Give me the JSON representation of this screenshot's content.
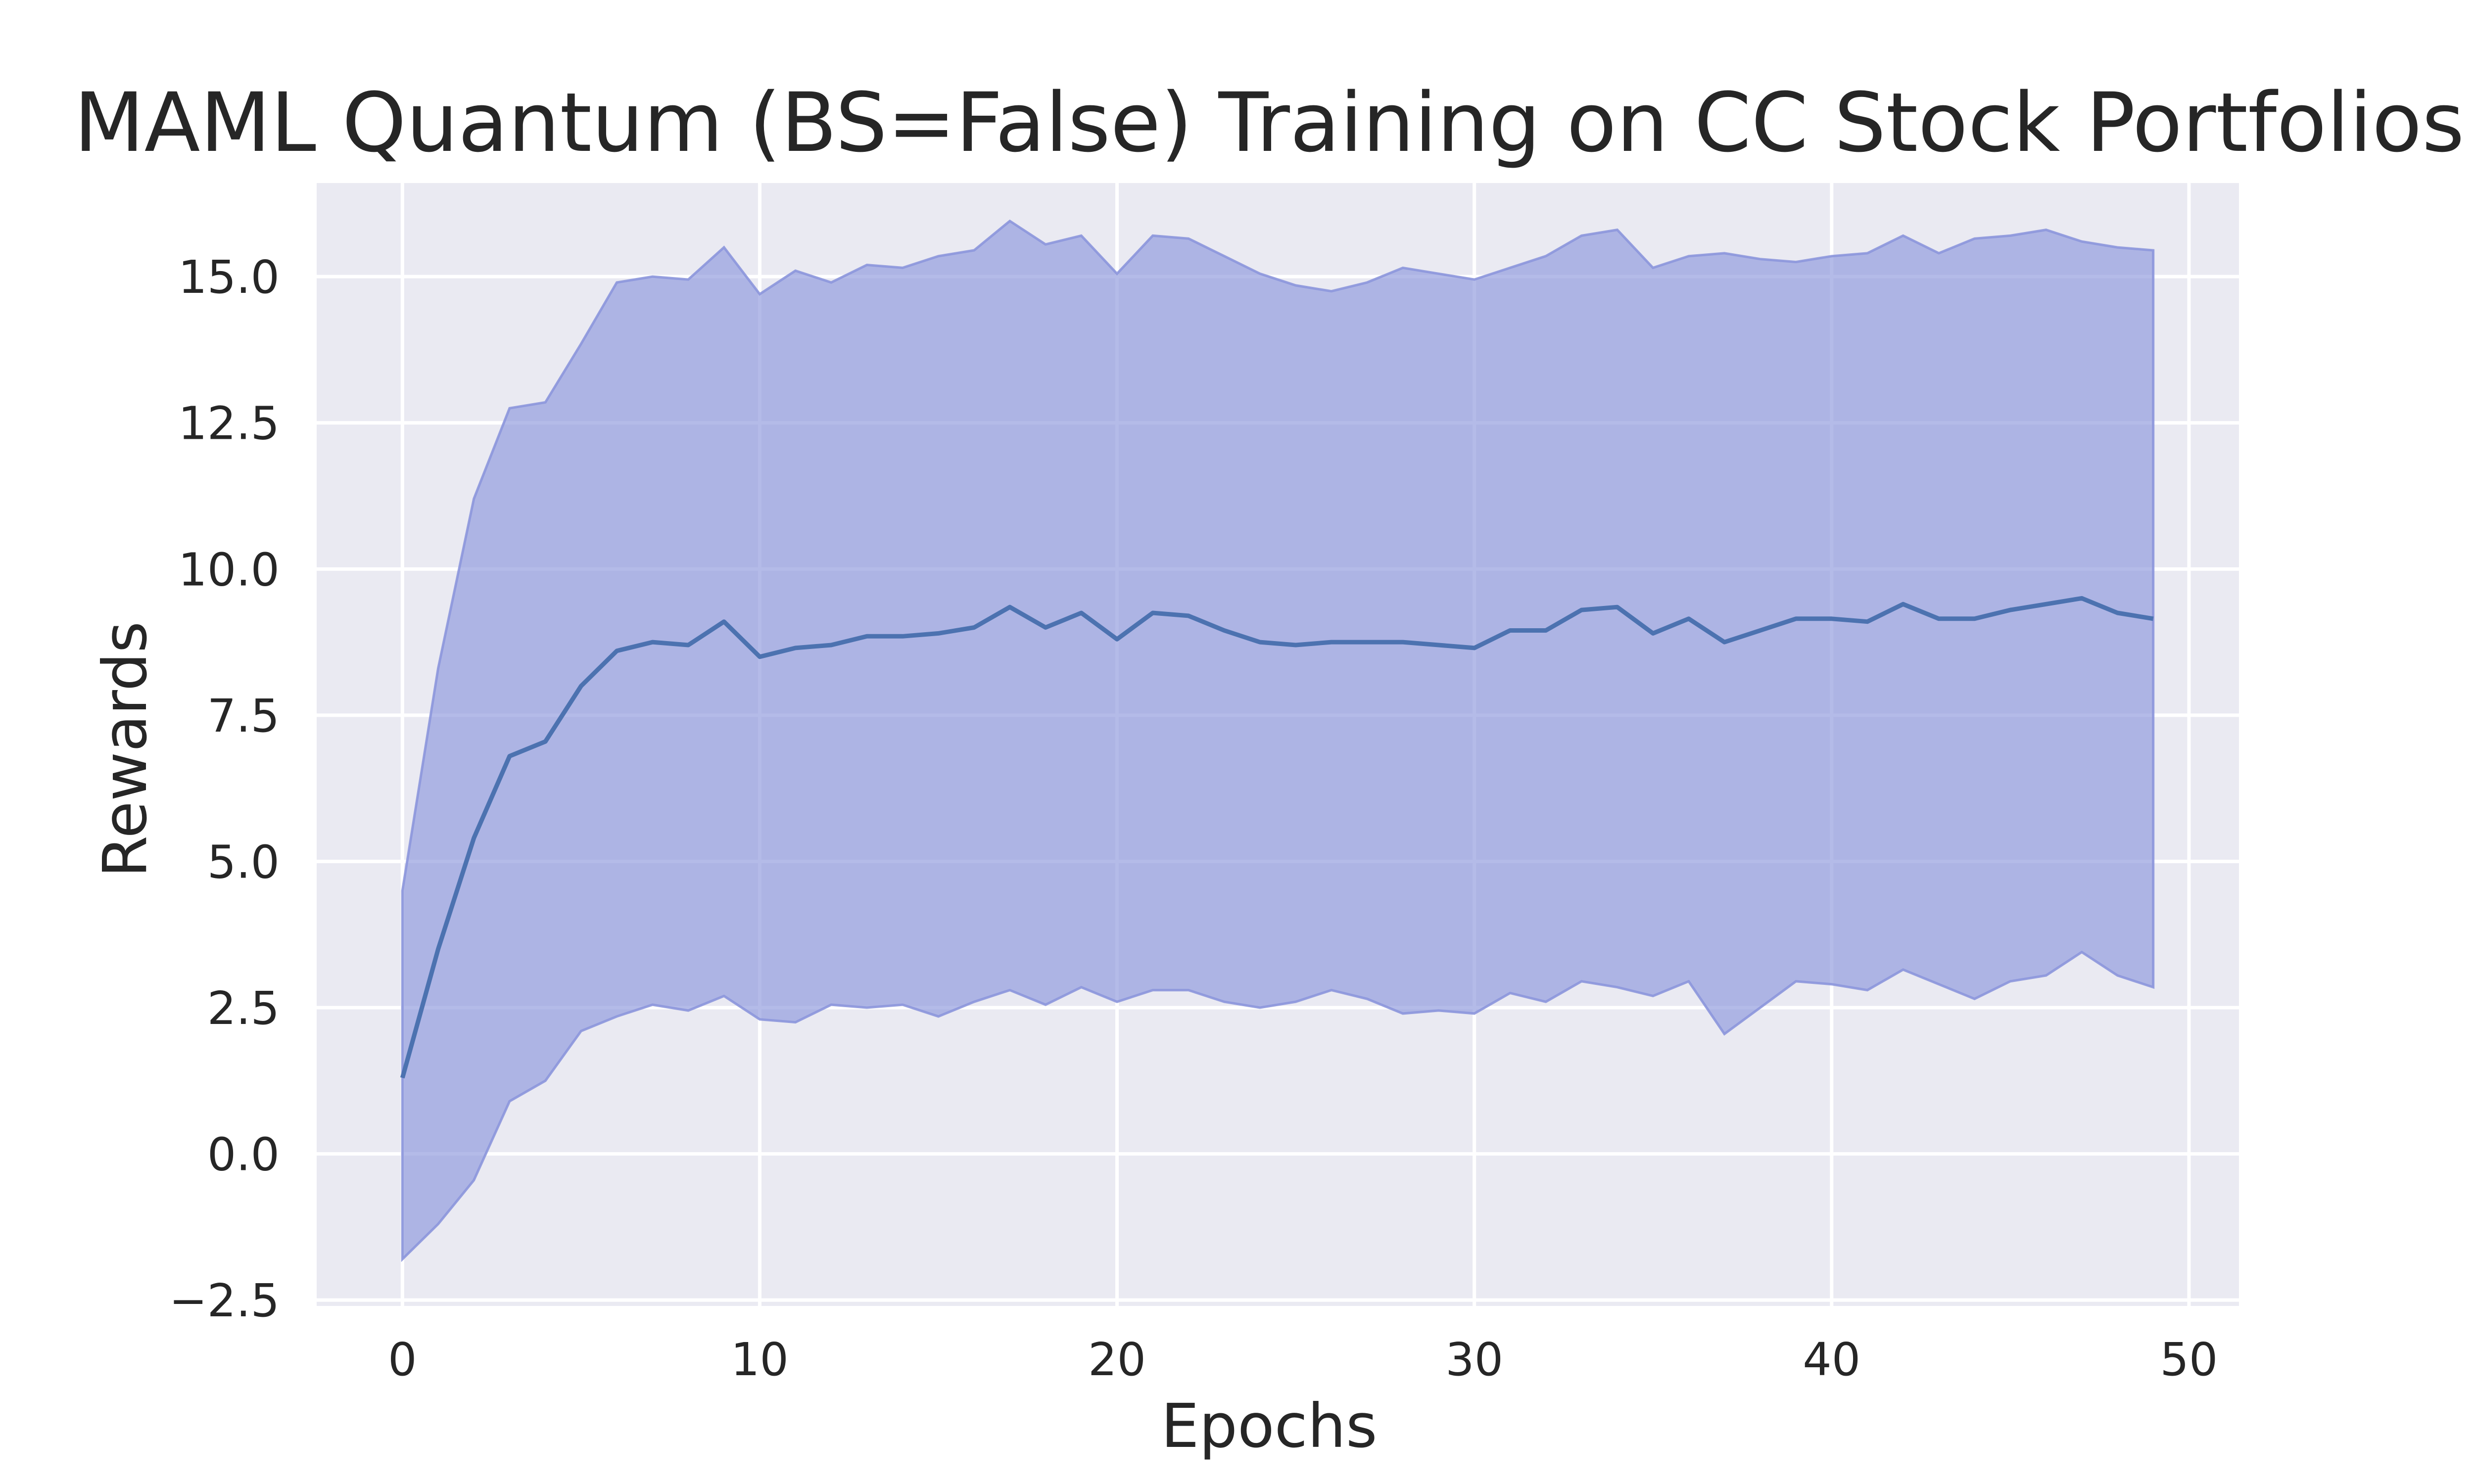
{
  "chart_data": {
    "type": "line",
    "title": "MAML Quantum (BS=False) Training on CC Stock Portfolios",
    "xlabel": "Epochs",
    "ylabel": "Rewards",
    "xlim": [
      -2.4,
      51.4
    ],
    "ylim": [
      -2.6,
      16.6
    ],
    "xticks": [
      0,
      10,
      20,
      30,
      40,
      50
    ],
    "xtick_labels": [
      "0",
      "10",
      "20",
      "30",
      "40",
      "50"
    ],
    "yticks": [
      -2.5,
      0.0,
      2.5,
      5.0,
      7.5,
      10.0,
      12.5,
      15.0
    ],
    "ytick_labels": [
      "−2.5",
      "0.0",
      "2.5",
      "5.0",
      "7.5",
      "10.0",
      "12.5",
      "15.0"
    ],
    "grid": true,
    "legend": "none",
    "style": {
      "background": "#eaeaf2",
      "grid_color": "#ffffff",
      "line_color": "#4c72b0",
      "band_fill": "#8c96dc",
      "band_edge": "#8c96dc"
    },
    "x": [
      0,
      1,
      2,
      3,
      4,
      5,
      6,
      7,
      8,
      9,
      10,
      11,
      12,
      13,
      14,
      15,
      16,
      17,
      18,
      19,
      20,
      21,
      22,
      23,
      24,
      25,
      26,
      27,
      28,
      29,
      30,
      31,
      32,
      33,
      34,
      35,
      36,
      37,
      38,
      39,
      40,
      41,
      42,
      43,
      44,
      45,
      46,
      47,
      48,
      49
    ],
    "series": [
      {
        "values": [
          1.3,
          3.5,
          5.4,
          6.8,
          7.05,
          8.0,
          8.6,
          8.75,
          8.7,
          9.1,
          8.5,
          8.65,
          8.7,
          8.85,
          8.85,
          8.9,
          9.0,
          9.35,
          9.0,
          9.25,
          8.8,
          9.25,
          9.2,
          8.95,
          8.75,
          8.7,
          8.75,
          8.75,
          8.75,
          8.7,
          8.65,
          8.95,
          8.95,
          9.3,
          9.35,
          8.9,
          9.15,
          8.75,
          8.95,
          9.15,
          9.15,
          9.1,
          9.4,
          9.15,
          9.15,
          9.3,
          9.4,
          9.5,
          9.25,
          9.15
        ],
        "lower": [
          -1.8,
          -1.2,
          -0.45,
          0.9,
          1.25,
          2.1,
          2.35,
          2.55,
          2.45,
          2.7,
          2.3,
          2.25,
          2.55,
          2.5,
          2.55,
          2.35,
          2.6,
          2.8,
          2.55,
          2.85,
          2.6,
          2.8,
          2.8,
          2.6,
          2.5,
          2.6,
          2.8,
          2.65,
          2.4,
          2.45,
          2.4,
          2.75,
          2.6,
          2.95,
          2.85,
          2.7,
          2.95,
          2.05,
          2.5,
          2.95,
          2.9,
          2.8,
          3.15,
          2.9,
          2.65,
          2.95,
          3.05,
          3.45,
          3.05,
          2.85
        ],
        "upper": [
          4.5,
          8.3,
          11.2,
          12.75,
          12.85,
          13.85,
          14.9,
          15.0,
          14.95,
          15.5,
          14.7,
          15.1,
          14.9,
          15.2,
          15.15,
          15.35,
          15.45,
          15.95,
          15.55,
          15.7,
          15.05,
          15.7,
          15.65,
          15.35,
          15.05,
          14.85,
          14.75,
          14.9,
          15.15,
          15.05,
          14.95,
          15.15,
          15.35,
          15.7,
          15.8,
          15.15,
          15.35,
          15.4,
          15.3,
          15.25,
          15.35,
          15.4,
          15.7,
          15.4,
          15.65,
          15.7,
          15.8,
          15.6,
          15.5,
          15.45
        ]
      }
    ]
  }
}
